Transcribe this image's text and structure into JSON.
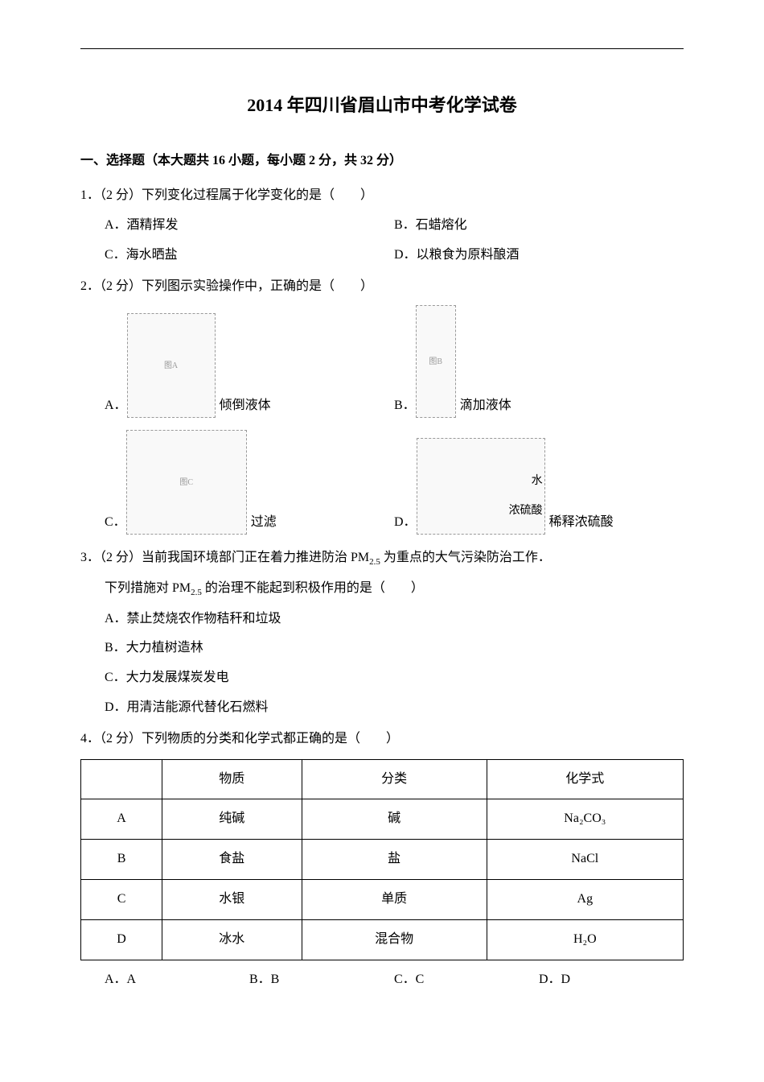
{
  "title": "2014 年四川省眉山市中考化学试卷",
  "section1": {
    "header": "一、选择题（本大题共 16 小题，每小题 2 分，共 32 分）"
  },
  "q1": {
    "text": "1．（2 分）下列变化过程属于化学变化的是（　　）",
    "optA": "A．酒精挥发",
    "optB": "B．石蜡熔化",
    "optC": "C．海水晒盐",
    "optD": "D．以粮食为原料酿酒"
  },
  "q2": {
    "text": "2．（2 分）下列图示实验操作中，正确的是（　　）",
    "labelA": "A．",
    "textA": "倾倒液体",
    "labelB": "B．",
    "textB": "滴加液体",
    "labelC": "C．",
    "textC": "过滤",
    "labelD": "D．",
    "textD": "稀释浓硫酸",
    "imgD_water": "水",
    "imgD_acid": "浓硫酸"
  },
  "q3": {
    "line1": "3．（2 分）当前我国环境部门正在着力推进防治 PM",
    "sub1": "2.5",
    "line1b": " 为重点的大气污染防治工作．",
    "line2a": "下列措施对 PM",
    "sub2": "2.5",
    "line2b": " 的治理不能起到积极作用的是（　　）",
    "optA": "A．禁止焚烧农作物秸秆和垃圾",
    "optB": "B．大力植树造林",
    "optC": "C．大力发展煤炭发电",
    "optD": "D．用清洁能源代替化石燃料"
  },
  "q4": {
    "text": "4．（2 分）下列物质的分类和化学式都正确的是（　　）",
    "table": {
      "headers": [
        "",
        "物质",
        "分类",
        "化学式"
      ],
      "rows": [
        [
          "A",
          "纯碱",
          "碱",
          "Na₂CO₃"
        ],
        [
          "B",
          "食盐",
          "盐",
          "NaCl"
        ],
        [
          "C",
          "水银",
          "单质",
          "Ag"
        ],
        [
          "D",
          "冰水",
          "混合物",
          "H₂O"
        ]
      ]
    },
    "optA": "A．A",
    "optB": "B．B",
    "optC": "C．C",
    "optD": "D．D"
  }
}
